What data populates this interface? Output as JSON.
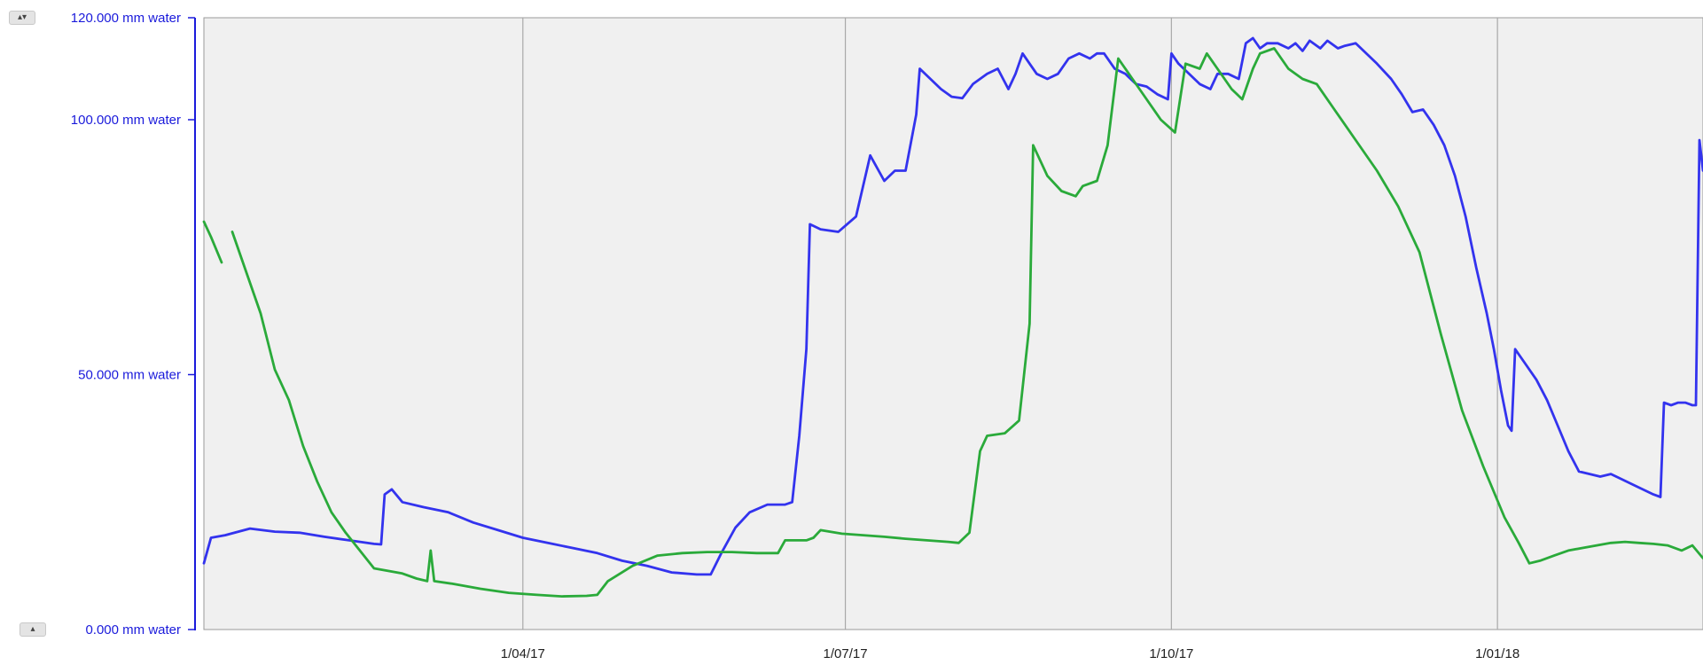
{
  "controls": {
    "top_arrows": "▴▾",
    "bottom_arrow": "▴"
  },
  "colors": {
    "axis": "#1a1adb",
    "plot_bg": "#f0f0f0",
    "grid": "#a8a8a8",
    "series_blue": "#3333ee",
    "series_green": "#2aaa3a"
  },
  "chart_data": {
    "type": "line",
    "title": "",
    "xlabel": "",
    "ylabel": "",
    "ylim": [
      0,
      120
    ],
    "xlim": [
      "2017-01-01",
      "2018-02-28"
    ],
    "y_ticks": [
      {
        "value": 0,
        "label": "0.000 mm water"
      },
      {
        "value": 50,
        "label": "50.000 mm water"
      },
      {
        "value": 100,
        "label": "100.000 mm water"
      },
      {
        "value": 120,
        "label": "120.000 mm water"
      }
    ],
    "x_ticks": [
      {
        "date": "2017-04-01",
        "label": "1/04/17"
      },
      {
        "date": "2017-07-01",
        "label": "1/07/17"
      },
      {
        "date": "2017-10-01",
        "label": "1/10/17"
      },
      {
        "date": "2018-01-01",
        "label": "1/01/18"
      }
    ],
    "grid": "vertical lines at x ticks",
    "series": [
      {
        "color": "#3333ee",
        "points": [
          [
            "2017-01-01",
            13
          ],
          [
            "2017-01-03",
            18
          ],
          [
            "2017-01-07",
            18.5
          ],
          [
            "2017-01-14",
            19.8
          ],
          [
            "2017-01-21",
            19.2
          ],
          [
            "2017-01-28",
            19
          ],
          [
            "2017-02-04",
            18.2
          ],
          [
            "2017-02-11",
            17.5
          ],
          [
            "2017-02-18",
            16.8
          ],
          [
            "2017-02-20",
            16.7
          ],
          [
            "2017-02-21",
            26.5
          ],
          [
            "2017-02-23",
            27.5
          ],
          [
            "2017-02-26",
            25
          ],
          [
            "2017-03-04",
            24
          ],
          [
            "2017-03-11",
            23
          ],
          [
            "2017-03-18",
            21
          ],
          [
            "2017-03-25",
            19.5
          ],
          [
            "2017-04-01",
            18
          ],
          [
            "2017-04-08",
            17
          ],
          [
            "2017-04-15",
            16
          ],
          [
            "2017-04-22",
            15
          ],
          [
            "2017-04-29",
            13.5
          ],
          [
            "2017-05-06",
            12.5
          ],
          [
            "2017-05-13",
            11.2
          ],
          [
            "2017-05-20",
            10.8
          ],
          [
            "2017-05-24",
            10.8
          ],
          [
            "2017-05-27",
            15
          ],
          [
            "2017-05-31",
            20
          ],
          [
            "2017-06-04",
            23
          ],
          [
            "2017-06-09",
            24.5
          ],
          [
            "2017-06-14",
            24.5
          ],
          [
            "2017-06-16",
            25
          ],
          [
            "2017-06-18",
            38
          ],
          [
            "2017-06-20",
            55
          ],
          [
            "2017-06-21",
            79.5
          ],
          [
            "2017-06-24",
            78.5
          ],
          [
            "2017-06-29",
            78
          ],
          [
            "2017-07-04",
            81
          ],
          [
            "2017-07-08",
            93
          ],
          [
            "2017-07-12",
            88
          ],
          [
            "2017-07-15",
            90
          ],
          [
            "2017-07-18",
            90
          ],
          [
            "2017-07-21",
            101
          ],
          [
            "2017-07-22",
            110
          ],
          [
            "2017-07-25",
            108
          ],
          [
            "2017-07-28",
            106
          ],
          [
            "2017-07-31",
            104.5
          ],
          [
            "2017-08-03",
            104.2
          ],
          [
            "2017-08-06",
            107
          ],
          [
            "2017-08-10",
            109
          ],
          [
            "2017-08-13",
            110
          ],
          [
            "2017-08-16",
            106
          ],
          [
            "2017-08-18",
            109
          ],
          [
            "2017-08-20",
            113
          ],
          [
            "2017-08-22",
            111
          ],
          [
            "2017-08-24",
            109
          ],
          [
            "2017-08-27",
            108
          ],
          [
            "2017-08-30",
            109
          ],
          [
            "2017-09-02",
            112
          ],
          [
            "2017-09-05",
            113
          ],
          [
            "2017-09-08",
            112
          ],
          [
            "2017-09-10",
            113
          ],
          [
            "2017-09-12",
            113
          ],
          [
            "2017-09-15",
            110
          ],
          [
            "2017-09-18",
            109
          ],
          [
            "2017-09-21",
            107
          ],
          [
            "2017-09-24",
            106.5
          ],
          [
            "2017-09-27",
            105
          ],
          [
            "2017-09-30",
            104
          ],
          [
            "2017-10-01",
            113
          ],
          [
            "2017-10-03",
            111
          ],
          [
            "2017-10-06",
            109
          ],
          [
            "2017-10-09",
            107
          ],
          [
            "2017-10-12",
            106
          ],
          [
            "2017-10-14",
            109
          ],
          [
            "2017-10-17",
            109
          ],
          [
            "2017-10-20",
            108
          ],
          [
            "2017-10-22",
            115
          ],
          [
            "2017-10-24",
            116
          ],
          [
            "2017-10-26",
            114
          ],
          [
            "2017-10-28",
            115
          ],
          [
            "2017-10-31",
            115
          ],
          [
            "2017-11-03",
            114
          ],
          [
            "2017-11-05",
            115
          ],
          [
            "2017-11-07",
            113.5
          ],
          [
            "2017-11-09",
            115.5
          ],
          [
            "2017-11-12",
            114
          ],
          [
            "2017-11-14",
            115.5
          ],
          [
            "2017-11-17",
            114
          ],
          [
            "2017-11-19",
            114.5
          ],
          [
            "2017-11-22",
            115
          ],
          [
            "2017-11-25",
            113
          ],
          [
            "2017-11-28",
            111
          ],
          [
            "2017-12-02",
            108
          ],
          [
            "2017-12-05",
            105
          ],
          [
            "2017-12-08",
            101.5
          ],
          [
            "2017-12-11",
            102
          ],
          [
            "2017-12-14",
            99
          ],
          [
            "2017-12-17",
            95
          ],
          [
            "2017-12-20",
            89
          ],
          [
            "2017-12-23",
            81
          ],
          [
            "2017-12-26",
            71
          ],
          [
            "2017-12-29",
            62
          ],
          [
            "2017-12-31",
            55
          ],
          [
            "2018-01-02",
            47
          ],
          [
            "2018-01-04",
            40
          ],
          [
            "2018-01-05",
            39
          ],
          [
            "2018-01-06",
            55
          ],
          [
            "2018-01-09",
            52
          ],
          [
            "2018-01-12",
            49
          ],
          [
            "2018-01-15",
            45
          ],
          [
            "2018-01-18",
            40
          ],
          [
            "2018-01-21",
            35
          ],
          [
            "2018-01-24",
            31
          ],
          [
            "2018-01-27",
            30.5
          ],
          [
            "2018-01-30",
            30
          ],
          [
            "2018-02-02",
            30.5
          ],
          [
            "2018-02-05",
            29.5
          ],
          [
            "2018-02-08",
            28.5
          ],
          [
            "2018-02-11",
            27.5
          ],
          [
            "2018-02-14",
            26.5
          ],
          [
            "2018-02-16",
            26
          ],
          [
            "2018-02-17",
            44.5
          ],
          [
            "2018-02-19",
            44
          ],
          [
            "2018-02-21",
            44.5
          ],
          [
            "2018-02-23",
            44.5
          ],
          [
            "2018-02-25",
            44
          ],
          [
            "2018-02-26",
            44
          ],
          [
            "2018-02-27",
            96
          ],
          [
            "2018-02-28",
            90
          ]
        ]
      },
      {
        "color": "#2aaa3a",
        "segments": [
          [
            [
              "2017-01-01",
              80
            ],
            [
              "2017-01-03",
              77
            ],
            [
              "2017-01-06",
              72
            ]
          ],
          [
            [
              "2017-01-09",
              78
            ],
            [
              "2017-01-13",
              70
            ],
            [
              "2017-01-17",
              62
            ],
            [
              "2017-01-21",
              51
            ],
            [
              "2017-01-25",
              45
            ],
            [
              "2017-01-29",
              36
            ],
            [
              "2017-02-02",
              29
            ],
            [
              "2017-02-06",
              23
            ],
            [
              "2017-02-10",
              19
            ],
            [
              "2017-02-14",
              15.5
            ],
            [
              "2017-02-18",
              12
            ],
            [
              "2017-02-22",
              11.5
            ],
            [
              "2017-02-26",
              11
            ],
            [
              "2017-03-02",
              10
            ],
            [
              "2017-03-05",
              9.5
            ],
            [
              "2017-03-06",
              15.5
            ],
            [
              "2017-03-07",
              9.5
            ],
            [
              "2017-03-12",
              9
            ],
            [
              "2017-03-20",
              8
            ],
            [
              "2017-03-28",
              7.2
            ],
            [
              "2017-04-05",
              6.8
            ],
            [
              "2017-04-12",
              6.5
            ],
            [
              "2017-04-19",
              6.6
            ],
            [
              "2017-04-22",
              6.8
            ],
            [
              "2017-04-25",
              9.5
            ],
            [
              "2017-05-02",
              12.5
            ],
            [
              "2017-05-09",
              14.5
            ],
            [
              "2017-05-16",
              15
            ],
            [
              "2017-05-23",
              15.2
            ],
            [
              "2017-05-30",
              15.2
            ],
            [
              "2017-06-06",
              15
            ],
            [
              "2017-06-12",
              15
            ],
            [
              "2017-06-14",
              17.5
            ],
            [
              "2017-06-20",
              17.5
            ],
            [
              "2017-06-22",
              18
            ],
            [
              "2017-06-24",
              19.5
            ],
            [
              "2017-06-30",
              18.8
            ],
            [
              "2017-07-06",
              18.5
            ],
            [
              "2017-07-12",
              18.2
            ],
            [
              "2017-07-18",
              17.8
            ],
            [
              "2017-07-24",
              17.5
            ],
            [
              "2017-07-30",
              17.2
            ],
            [
              "2017-08-02",
              17
            ],
            [
              "2017-08-05",
              19
            ],
            [
              "2017-08-08",
              35
            ],
            [
              "2017-08-10",
              38
            ],
            [
              "2017-08-15",
              38.5
            ],
            [
              "2017-08-19",
              41
            ],
            [
              "2017-08-22",
              60
            ],
            [
              "2017-08-23",
              95
            ],
            [
              "2017-08-27",
              89
            ],
            [
              "2017-08-31",
              86
            ],
            [
              "2017-09-04",
              85
            ],
            [
              "2017-09-06",
              87
            ],
            [
              "2017-09-10",
              88
            ],
            [
              "2017-09-13",
              95
            ],
            [
              "2017-09-16",
              112
            ],
            [
              "2017-09-20",
              108
            ],
            [
              "2017-09-24",
              104
            ],
            [
              "2017-09-28",
              100
            ],
            [
              "2017-10-02",
              97.5
            ],
            [
              "2017-10-05",
              111
            ],
            [
              "2017-10-09",
              110
            ],
            [
              "2017-10-11",
              113
            ],
            [
              "2017-10-14",
              110
            ],
            [
              "2017-10-18",
              106
            ],
            [
              "2017-10-21",
              104
            ],
            [
              "2017-10-24",
              110
            ],
            [
              "2017-10-26",
              113
            ],
            [
              "2017-10-30",
              114
            ],
            [
              "2017-11-03",
              110
            ],
            [
              "2017-11-07",
              108
            ],
            [
              "2017-11-11",
              107
            ],
            [
              "2017-11-16",
              102
            ],
            [
              "2017-11-22",
              96
            ],
            [
              "2017-11-28",
              90
            ],
            [
              "2017-12-04",
              83
            ],
            [
              "2017-12-10",
              74
            ],
            [
              "2017-12-16",
              58
            ],
            [
              "2017-12-22",
              43
            ],
            [
              "2017-12-28",
              32
            ],
            [
              "2018-01-03",
              22
            ],
            [
              "2018-01-07",
              17
            ],
            [
              "2018-01-10",
              13
            ],
            [
              "2018-01-13",
              13.5
            ],
            [
              "2018-01-17",
              14.5
            ],
            [
              "2018-01-21",
              15.5
            ],
            [
              "2018-01-25",
              16
            ],
            [
              "2018-01-29",
              16.5
            ],
            [
              "2018-02-02",
              17
            ],
            [
              "2018-02-06",
              17.2
            ],
            [
              "2018-02-10",
              17
            ],
            [
              "2018-02-14",
              16.8
            ],
            [
              "2018-02-18",
              16.5
            ],
            [
              "2018-02-22",
              15.5
            ],
            [
              "2018-02-25",
              16.5
            ],
            [
              "2018-02-28",
              14
            ]
          ]
        ]
      }
    ]
  }
}
